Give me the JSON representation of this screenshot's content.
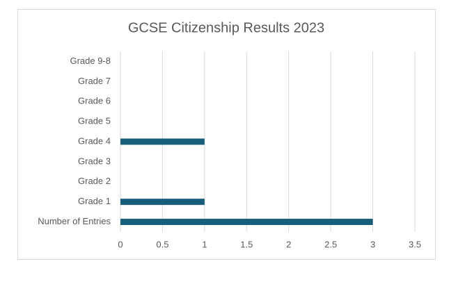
{
  "chart_data": {
    "type": "bar",
    "orientation": "horizontal",
    "title": "GCSE Citizenship Results 2023",
    "categories": [
      "Number of Entries",
      "Grade 1",
      "Grade 2",
      "Grade 3",
      "Grade 4",
      "Grade 5",
      "Grade 6",
      "Grade 7",
      "Grade 9-8"
    ],
    "values": [
      3,
      1,
      0,
      0,
      1,
      0,
      0,
      0,
      0
    ],
    "color": "#175e7a",
    "xlim": [
      0,
      3.5
    ],
    "xticks": [
      0,
      0.5,
      1,
      1.5,
      2,
      2.5,
      3,
      3.5
    ],
    "grid": true
  }
}
